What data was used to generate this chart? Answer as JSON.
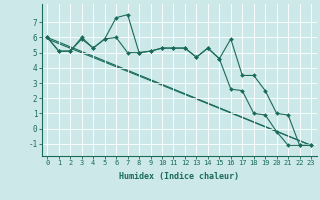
{
  "title": "",
  "xlabel": "Humidex (Indice chaleur)",
  "background_color": "#cce8e8",
  "line_color": "#1a6b5a",
  "xlim": [
    -0.5,
    23.5
  ],
  "ylim": [
    -1.8,
    8.2
  ],
  "yticks": [
    -1,
    0,
    1,
    2,
    3,
    4,
    5,
    6,
    7
  ],
  "xticks": [
    0,
    1,
    2,
    3,
    4,
    5,
    6,
    7,
    8,
    9,
    10,
    11,
    12,
    13,
    14,
    15,
    16,
    17,
    18,
    19,
    20,
    21,
    22,
    23
  ],
  "series1_x": [
    0,
    1,
    2,
    3,
    4,
    5,
    6,
    7,
    8,
    9,
    10,
    11,
    12,
    13,
    14,
    15,
    16,
    17,
    18,
    19,
    20,
    21,
    22,
    23
  ],
  "series1_y": [
    6.0,
    5.1,
    5.1,
    6.0,
    5.3,
    5.9,
    7.3,
    7.5,
    5.0,
    5.1,
    5.3,
    5.3,
    5.3,
    4.7,
    5.3,
    4.6,
    5.9,
    3.5,
    3.5,
    2.5,
    1.0,
    0.9,
    -1.1,
    -1.1
  ],
  "series2_x": [
    0,
    1,
    2,
    3,
    4,
    5,
    6,
    7,
    8,
    9,
    10,
    11,
    12,
    13,
    14,
    15,
    16,
    17,
    18,
    19,
    20,
    21,
    22,
    23
  ],
  "series2_y": [
    6.0,
    5.1,
    5.1,
    5.9,
    5.3,
    5.9,
    6.0,
    5.0,
    5.0,
    5.1,
    5.3,
    5.3,
    5.3,
    4.7,
    5.3,
    4.6,
    2.6,
    2.5,
    1.0,
    0.9,
    -0.2,
    -1.1,
    -1.1,
    -1.1
  ],
  "line1_x": [
    0,
    23
  ],
  "line1_y": [
    6.0,
    -1.1
  ],
  "line2_x": [
    0,
    23
  ],
  "line2_y": [
    5.9,
    -1.1
  ],
  "marker_size": 2.0,
  "line_width": 0.8,
  "tick_fontsize": 5.0,
  "xlabel_fontsize": 6.0
}
